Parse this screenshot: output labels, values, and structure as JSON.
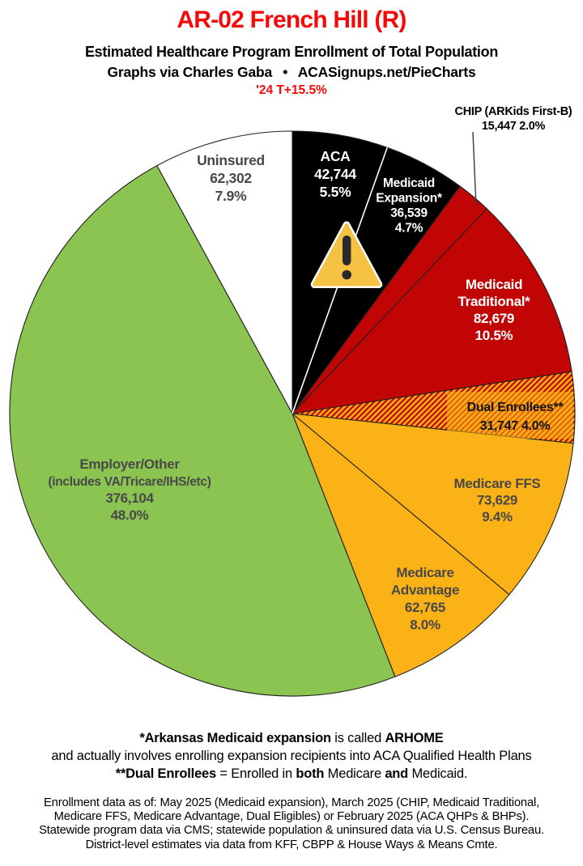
{
  "header": {
    "title": "AR-02 French Hill (R)",
    "subtitle": "Estimated Healthcare Program Enrollment of Total Population",
    "credit": "Graphs via Charles Gaba  •  ACASignups.net/PieCharts",
    "change_note": "'24 T+15.5%"
  },
  "chart_data": {
    "type": "pie",
    "title": "AR-02 French Hill (R) — Estimated Healthcare Program Enrollment of Total Population",
    "total": 783956,
    "start_angle_deg": 0,
    "direction": "clockwise",
    "legend_position": "labels-on-slices",
    "slices": [
      {
        "id": "aca",
        "label": "ACA",
        "value": 42744,
        "value_str": "42,744",
        "pct_str": "5.5%",
        "color": "#000000",
        "text_color": "#FFFFFF",
        "label_lines": [
          "ACA",
          "42,744",
          "5.5%"
        ]
      },
      {
        "id": "medicaid-expansion",
        "label": "Medicaid Expansion*",
        "value": 36539,
        "value_str": "36,539",
        "pct_str": "4.7%",
        "color": "#000000",
        "text_color": "#FFFFFF",
        "label_lines": [
          "Medicaid",
          "Expansion*",
          "36,539",
          "4.7%"
        ]
      },
      {
        "id": "chip",
        "label": "CHIP (ARKids First-B)",
        "value": 15447,
        "value_str": "15,447",
        "pct_str": "2.0%",
        "value_pct_str": "15,447 2.0%",
        "color": "#C10505",
        "text_color": "#000000",
        "label_outside": true,
        "label_lines": []
      },
      {
        "id": "medicaid-traditional",
        "label": "Medicaid Traditional*",
        "value": 82679,
        "value_str": "82,679",
        "pct_str": "10.5%",
        "color": "#C10505",
        "text_color": "#FFFFFF",
        "label_lines": [
          "Medicaid",
          "Traditional*",
          "82,679",
          "10.5%"
        ]
      },
      {
        "id": "dual-enrollees",
        "label": "Dual Enrollees**",
        "value": 31747,
        "value_str": "31,747",
        "pct_str": "4.0%",
        "color": "#FBB217",
        "pattern": "diagonal-stripes",
        "pattern_color": "#C10505",
        "text_color": "#141414",
        "label_lines": [
          "Dual Enrollees**",
          "31,747 4.0%"
        ]
      },
      {
        "id": "medicare-ffs",
        "label": "Medicare FFS",
        "value": 73629,
        "value_str": "73,629",
        "pct_str": "9.4%",
        "color": "#FBB217",
        "text_color": "#484848",
        "label_lines": [
          "Medicare FFS",
          "73,629",
          "9.4%"
        ]
      },
      {
        "id": "medicare-advantage",
        "label": "Medicare Advantage",
        "value": 62765,
        "value_str": "62,765",
        "pct_str": "8.0%",
        "color": "#FBB217",
        "text_color": "#484848",
        "label_lines": [
          "Medicare",
          "Advantage",
          "62,765",
          "8.0%"
        ]
      },
      {
        "id": "employer-other",
        "label": "Employer/Other (includes VA/Tricare/IHS/etc)",
        "value": 376104,
        "value_str": "376,104",
        "pct_str": "48.0%",
        "color": "#8CC452",
        "text_color": "#484848",
        "label_lines": [
          "Employer/Other",
          "(includes VA/Tricare/IHS/etc)",
          "376,104",
          "48.0%"
        ]
      },
      {
        "id": "uninsured",
        "label": "Uninsured",
        "value": 62302,
        "value_str": "62,302",
        "pct_str": "7.9%",
        "color": "#FFFFFF",
        "text_color": "#484848",
        "label_lines": [
          "Uninsured",
          "62,302",
          "7.9%"
        ]
      }
    ]
  },
  "icons": {
    "warning": {
      "name": "warning-triangle-icon",
      "fill": "#F6C244",
      "border": "#FFFFFF",
      "glyph_color": "#2A2A2A"
    }
  },
  "colors": {
    "title_red": "#F60909",
    "pie_red": "#C10505",
    "pie_gold": "#FBB217",
    "pie_green": "#8CC452",
    "pie_black": "#000000",
    "pie_white": "#FFFFFF",
    "slice_stroke": "#222222",
    "label_gray": "#484848"
  },
  "footnotes": {
    "arhome_parts": [
      {
        "t": "*Arkansas Medicaid expansion",
        "b": true
      },
      {
        "t": " is called ",
        "b": false
      },
      {
        "t": "ARHOME",
        "b": true
      }
    ],
    "expansion_line": "and actually involves enrolling expansion recipients into ACA Qualified Health Plans",
    "dual_parts": [
      {
        "t": "**Dual Enrollees",
        "b": true
      },
      {
        "t": " = Enrolled in ",
        "b": false
      },
      {
        "t": "both",
        "b": true
      },
      {
        "t": " Medicare ",
        "b": false
      },
      {
        "t": "and",
        "b": true
      },
      {
        "t": " Medicaid.",
        "b": false
      }
    ]
  },
  "sources": {
    "lines": [
      "Enrollment data as of: May 2025 (Medicaid expansion), March 2025 (CHIP, Medicaid Traditional,",
      "Medicare FFS, Medicare Advantage, Dual Eligibles) or February 2025 (ACA QHPs & BHPs).",
      "Statewide program data via CMS; statewide population & uninsured data via U.S. Census Bureau.",
      "District-level estimates via data from KFF, CBPP & House Ways & Means Cmte."
    ]
  }
}
